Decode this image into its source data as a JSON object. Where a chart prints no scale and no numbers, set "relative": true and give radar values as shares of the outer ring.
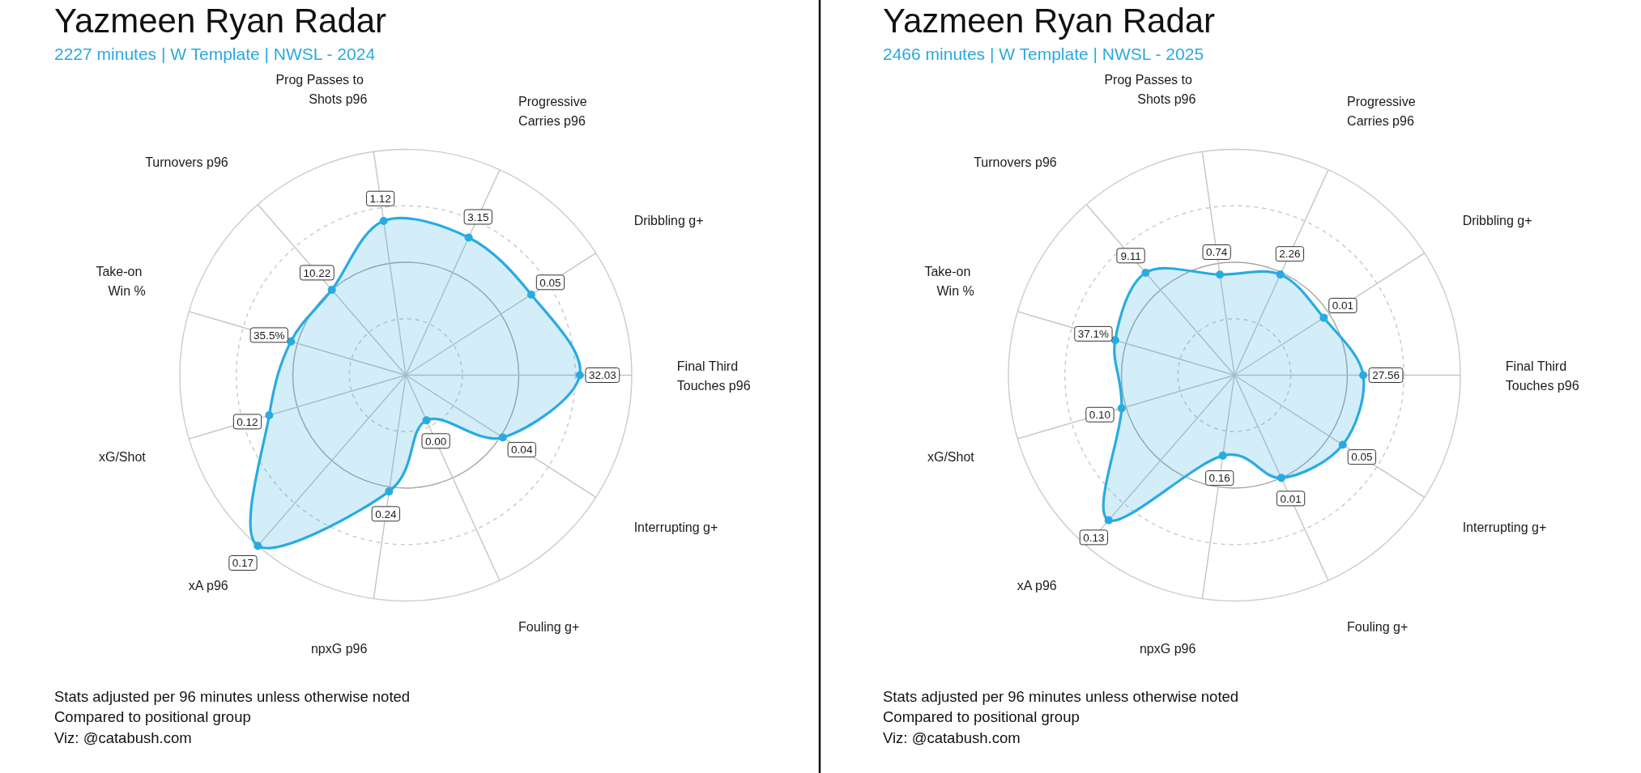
{
  "chart_data": [
    {
      "type": "radar",
      "title": "Yazmeen Ryan Radar",
      "subtitle": "2227 minutes | W Template | NWSL - 2024",
      "categories": [
        "Prog Passes to\nShots p96",
        "Progressive\nCarries p96",
        "Dribbling g+",
        "Final Third\nTouches p96",
        "Interrupting g+",
        "Fouling g+",
        "npxG p96",
        "xA p96",
        "xG/Shot",
        "Take-on\nWin %",
        "Turnovers p96"
      ],
      "relative": true,
      "grid": true,
      "marker": "circle",
      "series": [
        {
          "color": "#29abe2",
          "values": [
            0.69,
            0.67,
            0.66,
            0.77,
            0.51,
            0.22,
            0.52,
            1,
            0.63,
            0.53,
            0.5
          ]
        }
      ],
      "annotations": [
        "Stats adjusted per 96 minutes unless otherwise noted",
        "Compared to positional group",
        "Viz: @catabush.com",
        {
          "text": "1.12",
          "x": "Prog Passes to\nShots p96"
        },
        {
          "text": "3.15",
          "x": "Progressive\nCarries p96"
        },
        {
          "text": "0.05",
          "x": "Dribbling g+"
        },
        {
          "text": "32.03",
          "x": "Final Third\nTouches p96"
        },
        {
          "text": "0.04",
          "x": "Interrupting g+"
        },
        {
          "text": "0.00",
          "x": "Fouling g+"
        },
        {
          "text": "0.24",
          "x": "npxG p96"
        },
        {
          "text": "0.17",
          "x": "xA p96"
        },
        {
          "text": "0.12",
          "x": "xG/Shot"
        },
        {
          "text": "35.5%",
          "x": "Take-on\nWin %"
        },
        {
          "text": "10.22",
          "x": "Turnovers p96"
        }
      ]
    },
    {
      "type": "radar",
      "title": "Yazmeen Ryan Radar",
      "subtitle": "2466 minutes | W Template | NWSL - 2025",
      "categories": [
        "Prog Passes to\nShots p96",
        "Progressive\nCarries p96",
        "Dribbling g+",
        "Final Third\nTouches p96",
        "Interrupting g+",
        "Fouling g+",
        "npxG p96",
        "xA p96",
        "xG/Shot",
        "Take-on\nWin %",
        "Turnovers p96"
      ],
      "relative": true,
      "grid": true,
      "marker": "circle",
      "series": [
        {
          "color": "#29abe2",
          "values": [
            0.45,
            0.49,
            0.47,
            0.57,
            0.57,
            0.5,
            0.36,
            0.85,
            0.52,
            0.55,
            0.6
          ]
        }
      ],
      "annotations": [
        "Stats adjusted per 96 minutes unless otherwise noted",
        "Compared to positional group",
        "Viz: @catabush.com",
        {
          "text": "0.74",
          "x": "Prog Passes to\nShots p96"
        },
        {
          "text": "2.26",
          "x": "Progressive\nCarries p96"
        },
        {
          "text": "0.01",
          "x": "Dribbling g+"
        },
        {
          "text": "27.56",
          "x": "Final Third\nTouches p96"
        },
        {
          "text": "0.05",
          "x": "Interrupting g+"
        },
        {
          "text": "0.01",
          "x": "Fouling g+"
        },
        {
          "text": "0.16",
          "x": "npxG p96"
        },
        {
          "text": "0.13",
          "x": "xA p96"
        },
        {
          "text": "0.10",
          "x": "xG/Shot"
        },
        {
          "text": "37.1%",
          "x": "Take-on\nWin %"
        },
        {
          "text": "9.11",
          "x": "Turnovers p96"
        }
      ]
    }
  ]
}
